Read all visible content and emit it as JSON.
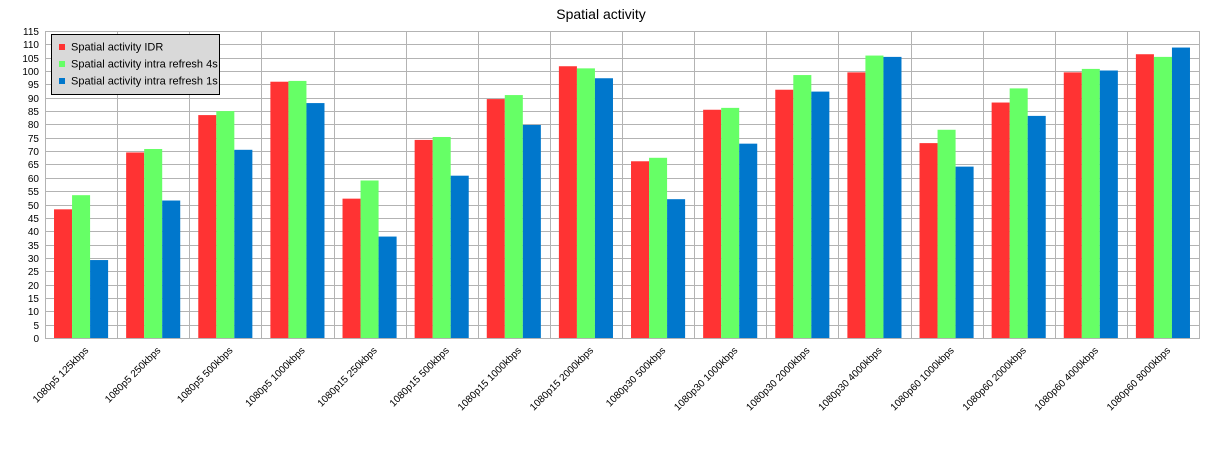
{
  "chart_data": {
    "type": "bar",
    "title": "Spatial activity",
    "xlabel": "",
    "ylabel": "",
    "ylim": [
      0,
      115
    ],
    "ytick_step": 5,
    "grid": true,
    "legend_position": "top-left",
    "categories": [
      "1080p5 125kbps",
      "1080p5 250kbps",
      "1080p5 500kbps",
      "1080p5 1000kbps",
      "1080p15 250kbps",
      "1080p15 500kbps",
      "1080p15 1000kbps",
      "1080p15 2000kbps",
      "1080p30 500kbps",
      "1080p30 1000kbps",
      "1080p30 2000kbps",
      "1080p30 4000kbps",
      "1080p60 1000kbps",
      "1080p60 2000kbps",
      "1080p60 4000kbps",
      "1080p60 8000kbps"
    ],
    "series": [
      {
        "name": "Spatial activity IDR",
        "color": "#ff3333",
        "values": [
          48.2,
          69.5,
          83.5,
          96,
          52.2,
          74.2,
          89.5,
          101.8,
          66.2,
          85.5,
          93,
          99.5,
          73,
          88.2,
          99.5,
          106.3
        ]
      },
      {
        "name": "Spatial activity intra refresh 4s",
        "color": "#66ff66",
        "values": [
          53.5,
          70.8,
          85,
          96.3,
          59,
          75.3,
          91,
          101,
          67.5,
          86.2,
          98.5,
          105.8,
          78,
          93.5,
          100.8,
          105.3
        ]
      },
      {
        "name": "Spatial activity intra refresh 1s",
        "color": "#0077cc",
        "values": [
          29.2,
          51.5,
          70.5,
          88,
          38,
          60.8,
          79.8,
          97.3,
          52,
          72.8,
          92.3,
          105.3,
          64.2,
          83.2,
          100.2,
          108.8
        ]
      }
    ]
  }
}
